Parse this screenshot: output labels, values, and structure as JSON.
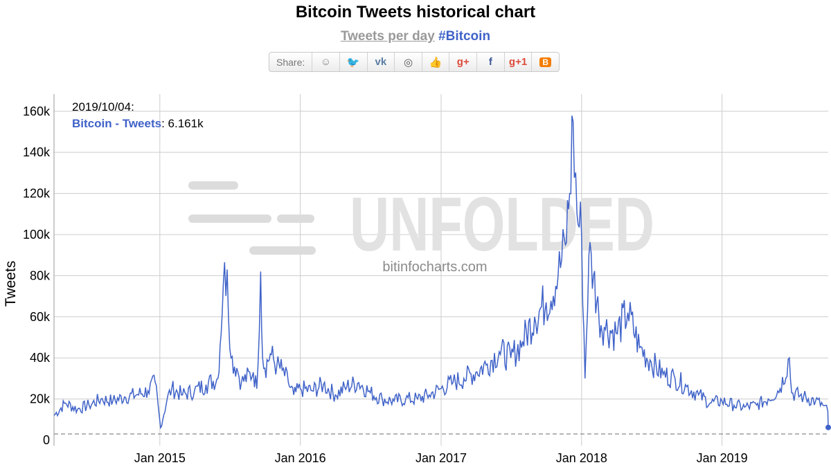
{
  "page": {
    "title": "Bitcoin Tweets historical chart",
    "subtitle_metric": "Tweets per day",
    "subtitle_tag": "#Bitcoin"
  },
  "share": {
    "label": "Share:",
    "buttons": [
      {
        "name": "reddit",
        "icon": "reddit-icon",
        "glyph": "☺",
        "color": "#888888"
      },
      {
        "name": "twitter",
        "icon": "twitter-icon",
        "glyph": "🐦",
        "color": "#55acee"
      },
      {
        "name": "vk",
        "icon": "vk-icon",
        "glyph": "vk",
        "color": "#587ea3"
      },
      {
        "name": "weibo",
        "icon": "weibo-icon",
        "glyph": "◎",
        "color": "#555555"
      },
      {
        "name": "like",
        "icon": "thumbs-up-icon",
        "glyph": "👍",
        "color": "#5d79b4"
      },
      {
        "name": "google-plus",
        "icon": "google-plus-icon",
        "glyph": "g+",
        "color": "#dd4b39"
      },
      {
        "name": "facebook",
        "icon": "facebook-icon",
        "glyph": "f",
        "color": "#3b5998"
      },
      {
        "name": "google-plus-one",
        "icon": "google-plus-one-icon",
        "glyph": "g+1",
        "color": "#dd4b39"
      },
      {
        "name": "blogger",
        "icon": "blogger-icon",
        "glyph": "B",
        "color": "#f57d00"
      }
    ]
  },
  "tooltip": {
    "date": "2019/10/04:",
    "series": "Bitcoin - Tweets",
    "value": "6.161k"
  },
  "watermark": {
    "brand": "UNFOLDED",
    "site": "bitinfocharts.com"
  },
  "colors": {
    "series": "#3f62c8",
    "grid": "#cccccc",
    "watermark": "#dcdcdc"
  },
  "chart_data": {
    "type": "line",
    "title": "Bitcoin Tweets historical chart",
    "ylabel": "Tweets",
    "xlabel": "",
    "ylim": [
      0,
      168000
    ],
    "xlim": [
      "2014-04-01",
      "2019-10-04"
    ],
    "y_ticks": [
      "0",
      "20k",
      "40k",
      "60k",
      "80k",
      "100k",
      "120k",
      "140k",
      "160k"
    ],
    "x_ticks": [
      "Jan 2015",
      "Jan 2016",
      "Jan 2017",
      "Jan 2018",
      "Jan 2019"
    ],
    "grid": true,
    "reference_line": 3000,
    "series": [
      {
        "name": "Bitcoin - Tweets",
        "x": [
          "2014-04-01",
          "2014-05-01",
          "2014-06-01",
          "2014-07-01",
          "2014-08-01",
          "2014-09-01",
          "2014-10-01",
          "2014-11-01",
          "2014-12-01",
          "2014-12-20",
          "2015-01-03",
          "2015-01-20",
          "2015-02-01",
          "2015-03-01",
          "2015-04-01",
          "2015-05-01",
          "2015-06-01",
          "2015-06-15",
          "2015-06-25",
          "2015-07-05",
          "2015-07-20",
          "2015-08-01",
          "2015-09-01",
          "2015-09-10",
          "2015-09-20",
          "2015-09-25",
          "2015-10-01",
          "2015-10-15",
          "2015-11-01",
          "2015-11-15",
          "2015-12-01",
          "2015-12-15",
          "2016-01-01",
          "2016-02-01",
          "2016-03-01",
          "2016-04-01",
          "2016-05-01",
          "2016-06-01",
          "2016-07-01",
          "2016-08-01",
          "2016-09-01",
          "2016-10-01",
          "2016-11-01",
          "2016-12-01",
          "2017-01-01",
          "2017-02-01",
          "2017-03-01",
          "2017-04-01",
          "2017-05-01",
          "2017-06-01",
          "2017-07-01",
          "2017-08-01",
          "2017-09-01",
          "2017-10-01",
          "2017-11-01",
          "2017-11-20",
          "2017-12-01",
          "2017-12-10",
          "2017-12-20",
          "2018-01-01",
          "2018-01-10",
          "2018-01-20",
          "2018-02-01",
          "2018-02-15",
          "2018-03-01",
          "2018-04-01",
          "2018-05-01",
          "2018-06-01",
          "2018-07-01",
          "2018-08-01",
          "2018-09-01",
          "2018-10-01",
          "2018-11-01",
          "2018-12-01",
          "2019-01-01",
          "2019-02-01",
          "2019-03-01",
          "2019-04-01",
          "2019-05-01",
          "2019-06-01",
          "2019-06-25",
          "2019-07-01",
          "2019-08-01",
          "2019-09-01",
          "2019-09-20",
          "2019-10-03",
          "2019-10-04"
        ],
        "y": [
          12000,
          18000,
          15000,
          17000,
          20000,
          19000,
          21000,
          22000,
          24000,
          28000,
          6000,
          20000,
          25000,
          22000,
          24000,
          27000,
          30000,
          76000,
          83000,
          40000,
          35000,
          28000,
          33000,
          25000,
          82000,
          40000,
          35000,
          42000,
          36000,
          34000,
          28000,
          22000,
          25000,
          24000,
          27000,
          22000,
          26000,
          28000,
          23000,
          20000,
          19000,
          20000,
          20000,
          22000,
          25000,
          28000,
          30000,
          33000,
          37000,
          43000,
          40000,
          48000,
          60000,
          67000,
          80000,
          95000,
          120000,
          155000,
          110000,
          100000,
          30000,
          90000,
          80000,
          60000,
          55000,
          52000,
          62000,
          45000,
          38000,
          32000,
          30000,
          26000,
          22000,
          18000,
          19000,
          17000,
          16000,
          17000,
          20000,
          25000,
          40000,
          23000,
          21000,
          19000,
          17000,
          14000,
          6161
        ]
      }
    ]
  }
}
